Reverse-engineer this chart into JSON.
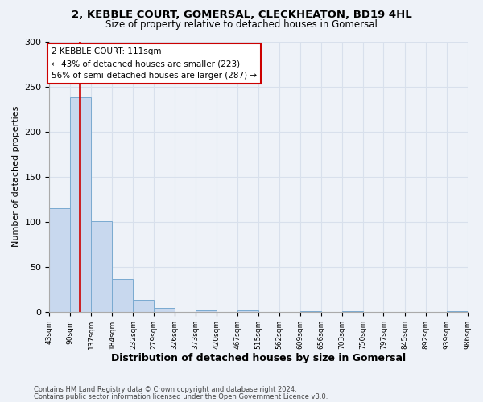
{
  "title_line1": "2, KEBBLE COURT, GOMERSAL, CLECKHEATON, BD19 4HL",
  "title_line2": "Size of property relative to detached houses in Gomersal",
  "xlabel": "Distribution of detached houses by size in Gomersal",
  "ylabel": "Number of detached properties",
  "bar_edges": [
    43,
    90,
    137,
    184,
    232,
    279,
    326,
    373,
    420,
    467,
    515,
    562,
    609,
    656,
    703,
    750,
    797,
    845,
    892,
    939,
    986
  ],
  "bar_heights": [
    115,
    238,
    101,
    36,
    13,
    4,
    0,
    2,
    0,
    2,
    0,
    0,
    1,
    0,
    1,
    0,
    0,
    0,
    0,
    1
  ],
  "bar_color": "#c8d8ee",
  "bar_edge_color": "#7aaad0",
  "grid_color": "#d8e0ec",
  "vline_x": 111,
  "vline_color": "#cc0000",
  "annotation_text": "2 KEBBLE COURT: 111sqm\n← 43% of detached houses are smaller (223)\n56% of semi-detached houses are larger (287) →",
  "annotation_box_color": "#ffffff",
  "annotation_border_color": "#cc0000",
  "ylim": [
    0,
    300
  ],
  "yticks": [
    0,
    50,
    100,
    150,
    200,
    250,
    300
  ],
  "tick_labels": [
    "43sqm",
    "90sqm",
    "137sqm",
    "184sqm",
    "232sqm",
    "279sqm",
    "326sqm",
    "373sqm",
    "420sqm",
    "467sqm",
    "515sqm",
    "562sqm",
    "609sqm",
    "656sqm",
    "703sqm",
    "750sqm",
    "797sqm",
    "845sqm",
    "892sqm",
    "939sqm",
    "986sqm"
  ],
  "footer_line1": "Contains HM Land Registry data © Crown copyright and database right 2024.",
  "footer_line2": "Contains public sector information licensed under the Open Government Licence v3.0.",
  "background_color": "#eef2f8",
  "plot_bg_color": "#eef2f8"
}
